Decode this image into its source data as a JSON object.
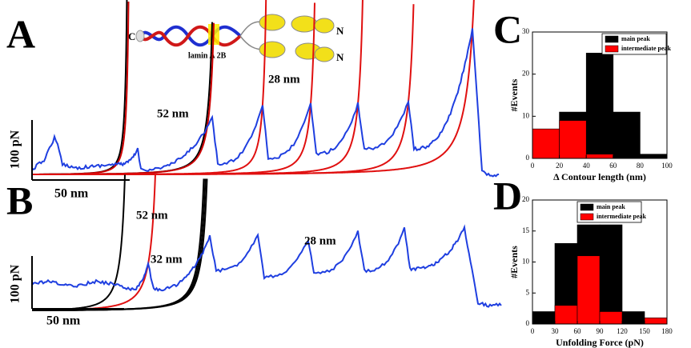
{
  "figure": {
    "panel_a": {
      "letter": "A",
      "schematic": {
        "c_term": "C",
        "n_term_1": "N",
        "n_term_2": "N",
        "label": "lamin A 2B"
      },
      "annotations": [
        "52 nm",
        "28 nm"
      ],
      "scale_force": "100 pN",
      "scale_length": "50 nm"
    },
    "panel_b": {
      "letter": "B",
      "annotations": [
        "52 nm",
        "32 nm",
        "28 nm"
      ],
      "scale_force": "100 pN",
      "scale_length": "50 nm"
    }
  },
  "chart_data": [
    {
      "type": "histogram",
      "panel_letter": "C",
      "xlabel": "Δ Contour length (nm)",
      "ylabel": "#Events",
      "bins": [
        0,
        20,
        40,
        60,
        80,
        100
      ],
      "series": [
        {
          "name": "main peak",
          "color": "#000000",
          "values": [
            0,
            11,
            25,
            11,
            1
          ]
        },
        {
          "name": "intermediate peak",
          "color": "#ff0000",
          "values": [
            7,
            9,
            1,
            0,
            0
          ]
        }
      ],
      "xlim": [
        0,
        100
      ],
      "xticks": [
        0,
        20,
        40,
        60,
        80,
        100
      ],
      "ylim": [
        0,
        30
      ],
      "yticks": [
        0,
        10,
        20,
        30
      ],
      "legend": "upper right"
    },
    {
      "type": "histogram",
      "panel_letter": "D",
      "xlabel": "Unfolding Force (pN)",
      "ylabel": "#Events",
      "bins": [
        0,
        30,
        60,
        90,
        120,
        150,
        180
      ],
      "series": [
        {
          "name": "main peak",
          "color": "#000000",
          "values": [
            2,
            13,
            16,
            16,
            2,
            0
          ]
        },
        {
          "name": "intermediate peak",
          "color": "#ff0000",
          "values": [
            0,
            3,
            11,
            2,
            0,
            1
          ]
        }
      ],
      "xlim": [
        0,
        180
      ],
      "xticks": [
        0,
        30,
        60,
        90,
        120,
        150,
        180
      ],
      "ylim": [
        0,
        20
      ],
      "yticks": [
        0,
        5,
        10,
        15,
        20
      ],
      "legend": "upper center"
    }
  ]
}
